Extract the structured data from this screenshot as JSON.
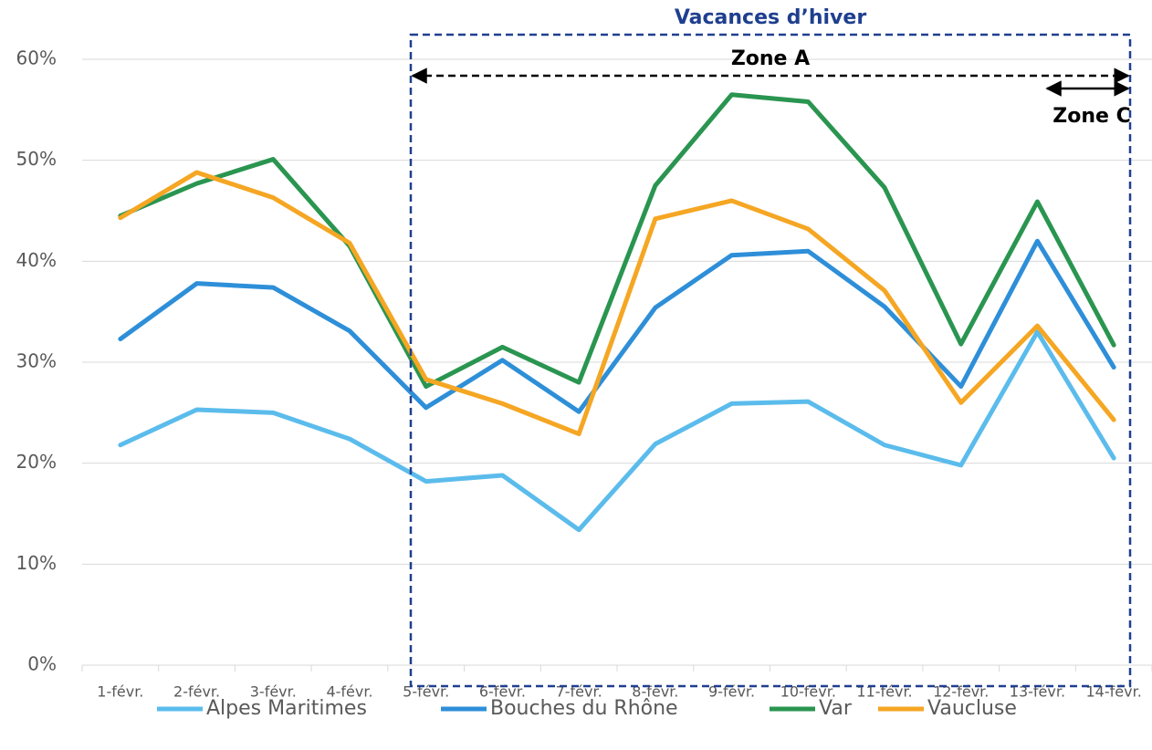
{
  "chart_data": {
    "type": "line",
    "categories": [
      "1-févr.",
      "2-févr.",
      "3-févr.",
      "4-févr.",
      "5-févr.",
      "6-févr.",
      "7-févr.",
      "8-févr.",
      "9-févr.",
      "10-févr.",
      "11-févr.",
      "12-févr.",
      "13-févr.",
      "14-févr."
    ],
    "series": [
      {
        "name": "Alpes Maritimes",
        "color": "#5bbcec",
        "values": [
          21.8,
          25.3,
          25.0,
          22.4,
          18.2,
          18.8,
          13.4,
          21.9,
          25.9,
          26.1,
          21.8,
          19.8,
          33.0,
          20.5
        ]
      },
      {
        "name": "Bouches du Rhône",
        "color": "#2e8fd8",
        "values": [
          32.3,
          37.8,
          37.4,
          33.1,
          25.5,
          30.2,
          25.1,
          35.4,
          40.6,
          41.0,
          35.5,
          27.6,
          42.0,
          29.5
        ]
      },
      {
        "name": "Var",
        "color": "#2a9550",
        "values": [
          44.5,
          47.7,
          50.1,
          41.5,
          27.6,
          31.5,
          28.0,
          47.5,
          56.5,
          55.8,
          47.3,
          31.8,
          45.9,
          31.7
        ]
      },
      {
        "name": "Vaucluse",
        "color": "#f5a623",
        "values": [
          44.3,
          48.8,
          46.3,
          41.8,
          28.3,
          25.9,
          22.9,
          44.2,
          46.0,
          43.2,
          37.1,
          26.0,
          33.6,
          24.3
        ]
      }
    ],
    "ylim": [
      0,
      60
    ],
    "yticks": [
      {
        "value": 0,
        "label": "0%"
      },
      {
        "value": 10,
        "label": "10%"
      },
      {
        "value": 20,
        "label": "20%"
      },
      {
        "value": 30,
        "label": "30%"
      },
      {
        "value": 40,
        "label": "40%"
      },
      {
        "value": 50,
        "label": "50%"
      },
      {
        "value": 60,
        "label": "60%"
      }
    ],
    "grid": true,
    "legend": "bottom",
    "annotations": [
      "Vacances d’hiver",
      "Zone A",
      "Zone C"
    ]
  }
}
